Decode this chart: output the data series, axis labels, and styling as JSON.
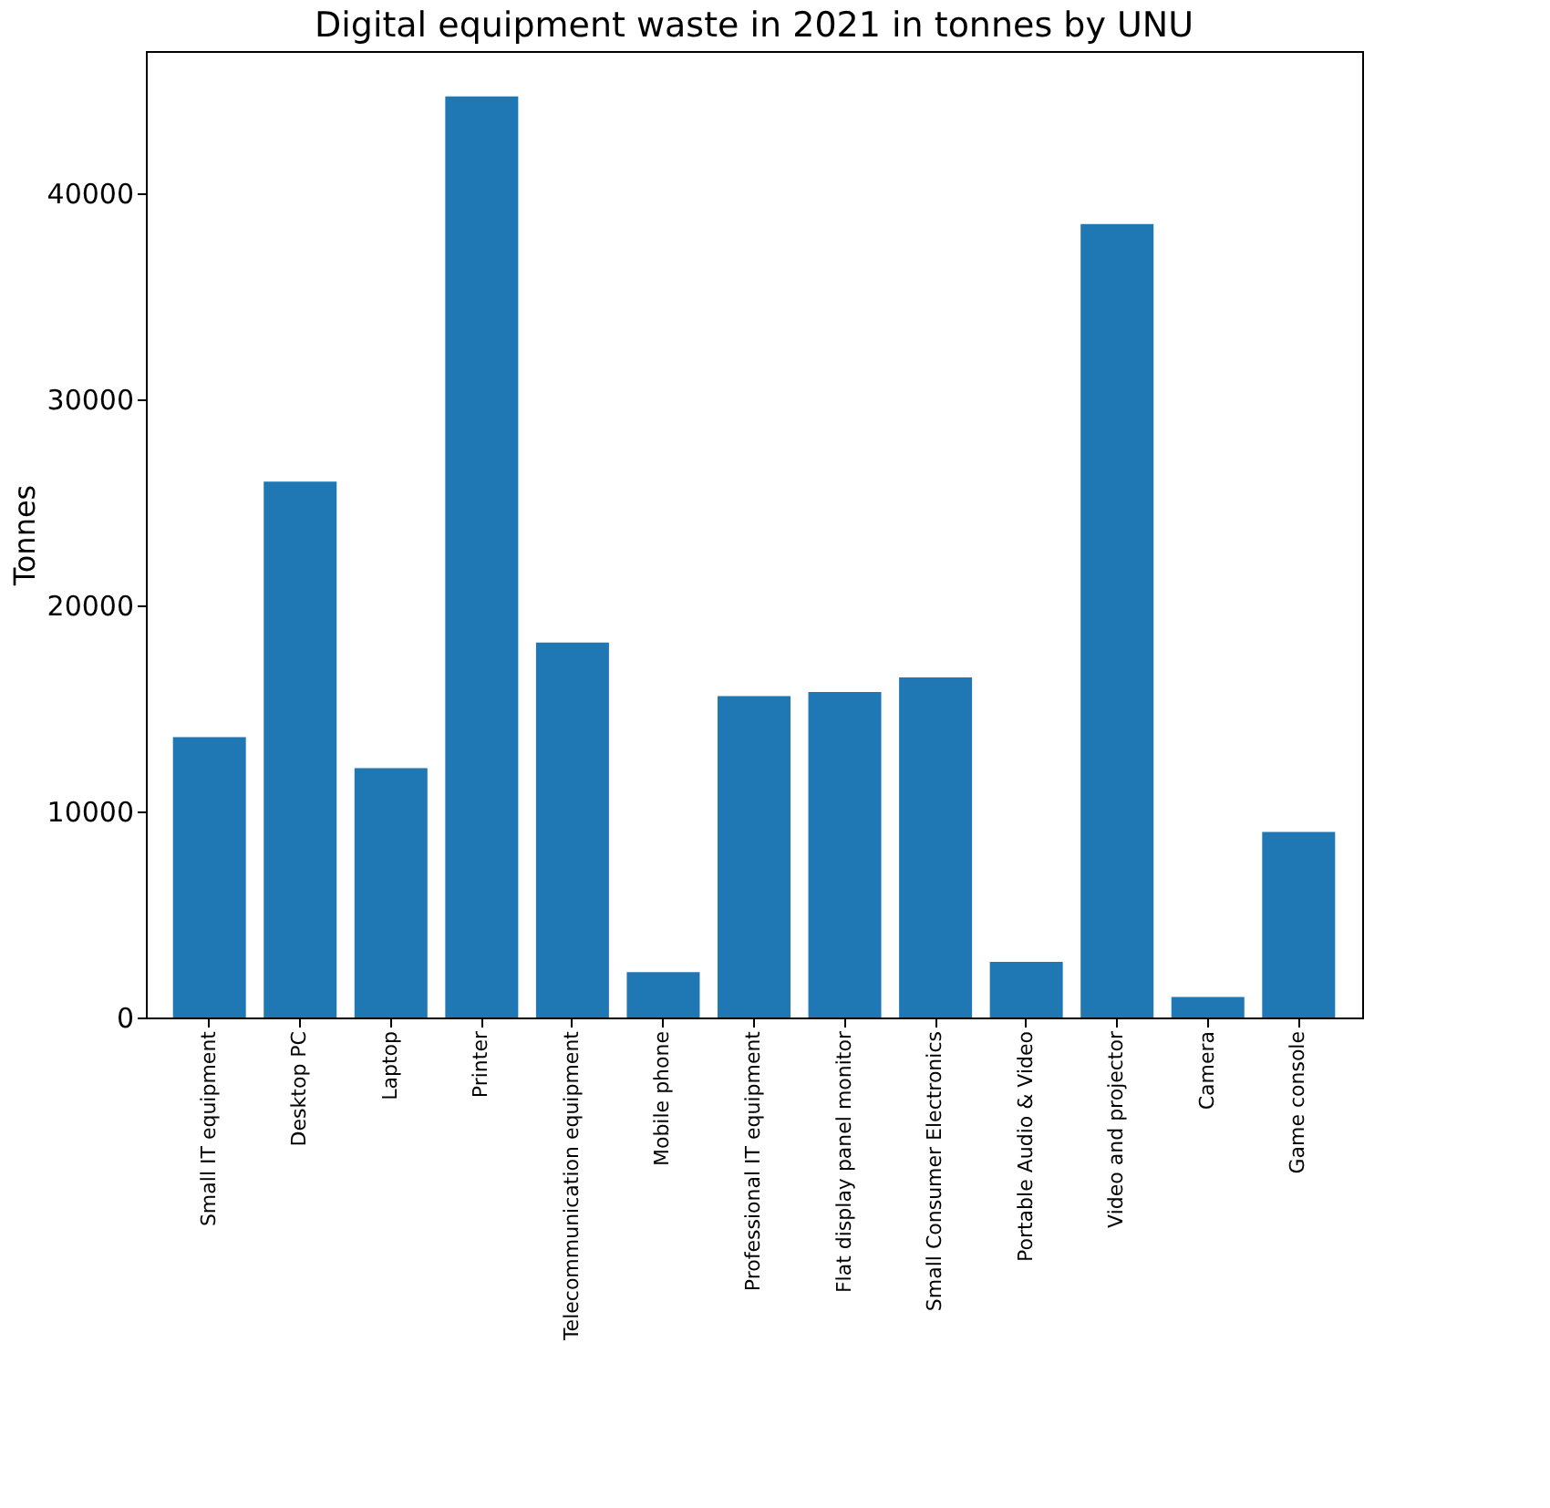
{
  "chart_data": {
    "type": "bar",
    "title": "Digital equipment waste in 2021 in tonnes by UNU",
    "ylabel": "Tonnes",
    "categories": [
      "Small IT equipment",
      "Desktop PC",
      "Laptop",
      "Printer",
      "Telecommunication equipment",
      "Mobile phone",
      "Professional IT equipment",
      "Flat display panel monitor",
      "Small Consumer Electronics",
      "Portable Audio & Video",
      "Video and projector",
      "Camera",
      "Game console"
    ],
    "values": [
      13600,
      26000,
      12100,
      44700,
      18200,
      2200,
      15600,
      15800,
      16500,
      2700,
      38500,
      1000,
      9000
    ],
    "color": "#1f77b4",
    "ylim": [
      0,
      46900
    ],
    "yticks": [
      0,
      10000,
      20000,
      30000,
      40000
    ],
    "grid": false
  }
}
